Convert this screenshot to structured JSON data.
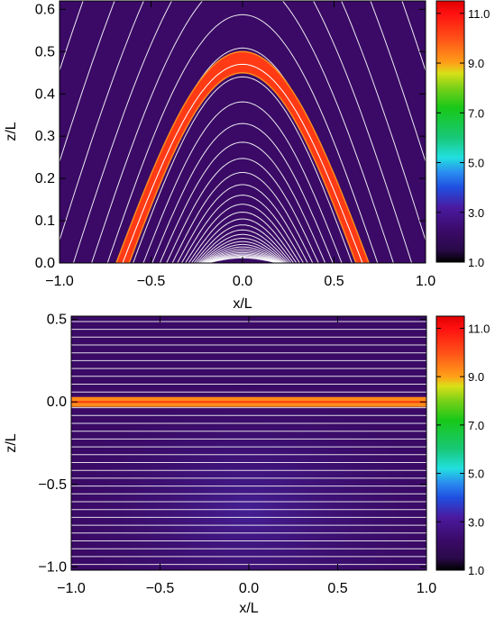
{
  "colors": {
    "background": "#3a0a66",
    "field_line": "#ffffff",
    "tube": "#ff3a14",
    "tube_edge": "#ff8a1e"
  },
  "colorbar": {
    "range": [
      1.0,
      11.5
    ],
    "tick_labels": [
      "11.0",
      "9.0",
      "7.0",
      "5.0",
      "3.0",
      "1.0"
    ],
    "tick_values": [
      11.0,
      9.0,
      7.0,
      5.0,
      3.0,
      1.0
    ],
    "stops": [
      {
        "v": 1.0,
        "c": "#000000"
      },
      {
        "v": 1.5,
        "c": "#2a0a4a"
      },
      {
        "v": 2.2,
        "c": "#3a0a66"
      },
      {
        "v": 3.2,
        "c": "#4a1aa0"
      },
      {
        "v": 4.0,
        "c": "#1f4fe0"
      },
      {
        "v": 4.6,
        "c": "#2a8cf0"
      },
      {
        "v": 5.2,
        "c": "#22e0e0"
      },
      {
        "v": 6.0,
        "c": "#18c878"
      },
      {
        "v": 7.2,
        "c": "#18c818"
      },
      {
        "v": 8.0,
        "c": "#7ad018"
      },
      {
        "v": 8.6,
        "c": "#d8e018"
      },
      {
        "v": 9.0,
        "c": "#ffa018"
      },
      {
        "v": 10.0,
        "c": "#ff5018"
      },
      {
        "v": 11.0,
        "c": "#ff1010"
      },
      {
        "v": 11.5,
        "c": "#e00000"
      }
    ]
  },
  "chart_data": [
    {
      "type": "heatmap",
      "title": "",
      "xlabel": "x/L",
      "ylabel": "z/L",
      "xlim": [
        -1.0,
        1.0
      ],
      "ylim": [
        0.0,
        0.62
      ],
      "x_tick_labels": [
        "−1.0",
        "−0.5",
        "0.0",
        "0.5",
        "1.0"
      ],
      "x_ticks": [
        -1.0,
        -0.5,
        0.0,
        0.5,
        1.0
      ],
      "y_tick_labels": [
        "0.0",
        "0.1",
        "0.2",
        "0.3",
        "0.4",
        "0.5",
        "0.6"
      ],
      "y_ticks": [
        0.0,
        0.1,
        0.2,
        0.3,
        0.4,
        0.5,
        0.6
      ],
      "field_lines": "arcade",
      "tube": {
        "footpoint_x": 0.68,
        "apex_outer_z": 0.5,
        "apex_inner_z": 0.45,
        "value": 10.5
      },
      "background_value": 2.4
    },
    {
      "type": "heatmap",
      "title": "",
      "xlabel": "x/L",
      "ylabel": "z/L",
      "xlim": [
        -1.0,
        1.0
      ],
      "ylim": [
        -1.02,
        0.52
      ],
      "x_tick_labels": [
        "−1.0",
        "−0.5",
        "0.0",
        "0.5",
        "1.0"
      ],
      "x_ticks": [
        -1.0,
        -0.5,
        0.0,
        0.5,
        1.0
      ],
      "y_tick_labels": [
        "0.5",
        "0.0",
        "−0.5",
        "−1.0"
      ],
      "y_ticks": [
        0.5,
        0.0,
        -0.5,
        -1.0
      ],
      "field_lines": "horizontal",
      "tube": {
        "z_center": 0.0,
        "half_width": 0.03,
        "value": 9.5
      },
      "background_value": 2.4
    }
  ]
}
